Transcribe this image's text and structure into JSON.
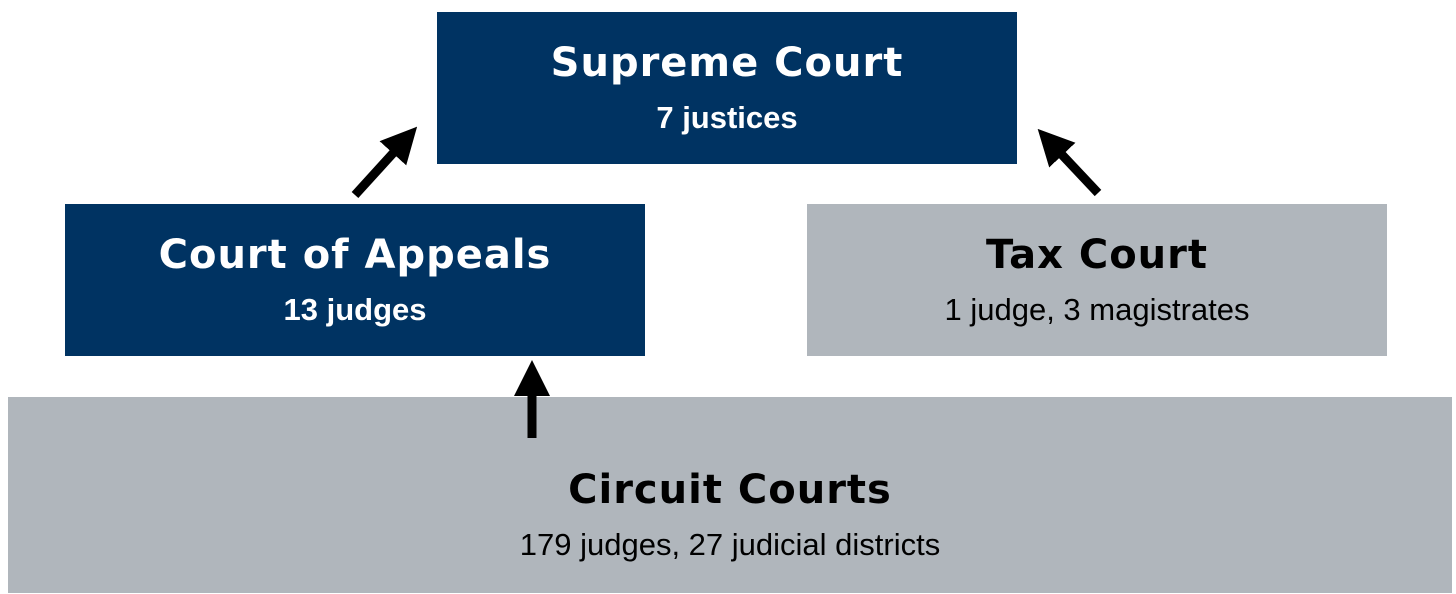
{
  "nodes": [
    {
      "title": "Supreme Court",
      "subtitle": "7 justices"
    },
    {
      "title": "Court of Appeals",
      "subtitle": "13 judges"
    },
    {
      "title": "Tax Court",
      "subtitle": "1 judge, 3 magistrates"
    },
    {
      "title": "Circuit Courts",
      "subtitle": "179 judges, 27 judicial districts"
    }
  ]
}
